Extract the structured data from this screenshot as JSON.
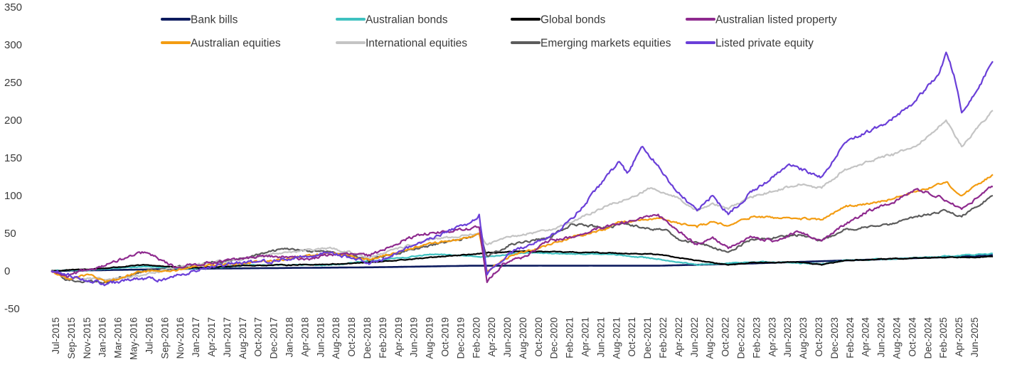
{
  "chart_data": {
    "type": "line",
    "title": "",
    "xlabel": "",
    "ylabel": "",
    "ylim": [
      -50,
      350
    ],
    "yticks": [
      "350",
      "300",
      "250",
      "200",
      "150",
      "100",
      "50",
      "0",
      "-50"
    ],
    "xticks": [
      "Jul-2015",
      "Sep-2015",
      "Nov-2015",
      "Jan-2016",
      "Mar-2016",
      "May-2016",
      "Jul-2016",
      "Sep-2016",
      "Nov-2016",
      "Jan-2017",
      "Apr-2017",
      "Jun-2017",
      "Aug-2017",
      "Oct-2017",
      "Dec-2017",
      "Jan-2018",
      "Apr-2018",
      "Jun-2018",
      "Aug-2018",
      "Oct-2018",
      "Dec-2018",
      "Feb-2019",
      "Apr-2019",
      "Jun-2019",
      "Aug-2019",
      "Oct-2019",
      "Dec-2019",
      "Feb-2020",
      "Apr-2020",
      "Jun-2020",
      "Aug-2020",
      "Oct-2020",
      "Dec-2020",
      "Feb-2021",
      "Apr-2021",
      "Jun-2021",
      "Aug-2021",
      "Oct-2021",
      "Dec-2021",
      "Feb-2022",
      "Apr-2022",
      "Jun-2022",
      "Aug-2022",
      "Oct-2022",
      "Dec-2022",
      "Feb-2023",
      "Apr-2023",
      "Jun-2023",
      "Aug-2023",
      "Oct-2023",
      "Dec-2023",
      "Feb-2024",
      "Apr-2024",
      "Jun-2024",
      "Aug-2024",
      "Oct-2024",
      "Dec-2024",
      "Feb-2025",
      "Apr-2025",
      "Jun-2025"
    ],
    "x_start": "Jul-2015",
    "x_end": "Aug-2025",
    "grid": false,
    "legend_position": "top",
    "series": [
      {
        "name": "Bank bills",
        "color": "#0d1b5e",
        "points": [
          [
            "Jul-2015",
            0
          ],
          [
            "Jan-2016",
            1
          ],
          [
            "Jan-2017",
            3
          ],
          [
            "Jan-2018",
            4
          ],
          [
            "Jan-2019",
            5
          ],
          [
            "Jan-2020",
            7
          ],
          [
            "Jan-2021",
            7
          ],
          [
            "Jan-2022",
            7
          ],
          [
            "Jan-2023",
            10
          ],
          [
            "Jan-2024",
            14
          ],
          [
            "Jan-2025",
            18
          ],
          [
            "Aug-2025",
            21
          ]
        ]
      },
      {
        "name": "Australian bonds",
        "color": "#3fc1c0",
        "points": [
          [
            "Jul-2015",
            0
          ],
          [
            "Jan-2016",
            2
          ],
          [
            "Jul-2016",
            6
          ],
          [
            "Jan-2017",
            3
          ],
          [
            "Jul-2017",
            7
          ],
          [
            "Jan-2018",
            8
          ],
          [
            "Jul-2018",
            8
          ],
          [
            "Jan-2019",
            14
          ],
          [
            "Aug-2019",
            22
          ],
          [
            "Jan-2020",
            20
          ],
          [
            "Mar-2020",
            19
          ],
          [
            "Aug-2020",
            24
          ],
          [
            "Jan-2021",
            23
          ],
          [
            "Jul-2021",
            22
          ],
          [
            "Jan-2022",
            16
          ],
          [
            "Jun-2022",
            8
          ],
          [
            "Oct-2022",
            10
          ],
          [
            "Jan-2023",
            12
          ],
          [
            "Jul-2023",
            11
          ],
          [
            "Oct-2023",
            9
          ],
          [
            "Jan-2024",
            14
          ],
          [
            "Jul-2024",
            16
          ],
          [
            "Jan-2025",
            19
          ],
          [
            "Aug-2025",
            23
          ]
        ]
      },
      {
        "name": "Global bonds",
        "color": "#000000",
        "points": [
          [
            "Jul-2015",
            0
          ],
          [
            "Jan-2016",
            3
          ],
          [
            "Jul-2016",
            8
          ],
          [
            "Jan-2017",
            4
          ],
          [
            "Jul-2017",
            7
          ],
          [
            "Jan-2018",
            8
          ],
          [
            "Jul-2018",
            9
          ],
          [
            "Jan-2019",
            12
          ],
          [
            "Aug-2019",
            18
          ],
          [
            "Jan-2020",
            22
          ],
          [
            "Mar-2020",
            24
          ],
          [
            "Aug-2020",
            26
          ],
          [
            "Jan-2021",
            25
          ],
          [
            "Jul-2021",
            24
          ],
          [
            "Jan-2022",
            22
          ],
          [
            "Jun-2022",
            14
          ],
          [
            "Oct-2022",
            8
          ],
          [
            "Jan-2023",
            11
          ],
          [
            "Jul-2023",
            12
          ],
          [
            "Oct-2023",
            8
          ],
          [
            "Jan-2024",
            14
          ],
          [
            "Jul-2024",
            16
          ],
          [
            "Jan-2025",
            18
          ],
          [
            "Aug-2025",
            19
          ]
        ]
      },
      {
        "name": "Australian listed property",
        "color": "#8e2a8e",
        "points": [
          [
            "Jul-2015",
            0
          ],
          [
            "Sep-2015",
            -8
          ],
          [
            "Nov-2015",
            0
          ],
          [
            "Jan-2016",
            5
          ],
          [
            "Apr-2016",
            15
          ],
          [
            "Jul-2016",
            25
          ],
          [
            "Sep-2016",
            15
          ],
          [
            "Nov-2016",
            5
          ],
          [
            "Jan-2017",
            8
          ],
          [
            "Apr-2017",
            12
          ],
          [
            "Jul-2017",
            15
          ],
          [
            "Oct-2017",
            20
          ],
          [
            "Jan-2018",
            18
          ],
          [
            "Apr-2018",
            16
          ],
          [
            "Jul-2018",
            22
          ],
          [
            "Oct-2018",
            22
          ],
          [
            "Dec-2018",
            20
          ],
          [
            "Feb-2019",
            30
          ],
          [
            "Apr-2019",
            40
          ],
          [
            "Jul-2019",
            50
          ],
          [
            "Oct-2019",
            52
          ],
          [
            "Feb-2020",
            58
          ],
          [
            "Mar-2020",
            -15
          ],
          [
            "May-2020",
            10
          ],
          [
            "Aug-2020",
            20
          ],
          [
            "Nov-2020",
            40
          ],
          [
            "Feb-2021",
            45
          ],
          [
            "May-2021",
            55
          ],
          [
            "Aug-2021",
            62
          ],
          [
            "Nov-2021",
            70
          ],
          [
            "Jan-2022",
            75
          ],
          [
            "Mar-2022",
            58
          ],
          [
            "Jun-2022",
            35
          ],
          [
            "Aug-2022",
            45
          ],
          [
            "Oct-2022",
            30
          ],
          [
            "Jan-2023",
            45
          ],
          [
            "Apr-2023",
            40
          ],
          [
            "Jul-2023",
            52
          ],
          [
            "Oct-2023",
            40
          ],
          [
            "Jan-2024",
            62
          ],
          [
            "Apr-2024",
            80
          ],
          [
            "Jul-2024",
            90
          ],
          [
            "Oct-2024",
            108
          ],
          [
            "Jan-2025",
            100
          ],
          [
            "Apr-2025",
            82
          ],
          [
            "Aug-2025",
            112
          ]
        ]
      },
      {
        "name": "Australian equities",
        "color": "#f39c12",
        "points": [
          [
            "Jul-2015",
            0
          ],
          [
            "Sep-2015",
            -10
          ],
          [
            "Dec-2015",
            -5
          ],
          [
            "Feb-2016",
            -15
          ],
          [
            "Jul-2016",
            0
          ],
          [
            "Nov-2016",
            0
          ],
          [
            "Jan-2017",
            5
          ],
          [
            "Jul-2017",
            10
          ],
          [
            "Jan-2018",
            15
          ],
          [
            "Jul-2018",
            25
          ],
          [
            "Dec-2018",
            15
          ],
          [
            "Jul-2019",
            35
          ],
          [
            "Jan-2020",
            45
          ],
          [
            "Feb-2020",
            50
          ],
          [
            "Mar-2020",
            0
          ],
          [
            "Jun-2020",
            20
          ],
          [
            "Nov-2020",
            35
          ],
          [
            "Feb-2021",
            45
          ],
          [
            "Jun-2021",
            55
          ],
          [
            "Aug-2021",
            65
          ],
          [
            "Nov-2021",
            68
          ],
          [
            "Jan-2022",
            70
          ],
          [
            "Jun-2022",
            58
          ],
          [
            "Aug-2022",
            65
          ],
          [
            "Oct-2022",
            60
          ],
          [
            "Jan-2023",
            72
          ],
          [
            "Jun-2023",
            70
          ],
          [
            "Oct-2023",
            68
          ],
          [
            "Jan-2024",
            85
          ],
          [
            "Jul-2024",
            95
          ],
          [
            "Oct-2024",
            105
          ],
          [
            "Feb-2025",
            118
          ],
          [
            "Apr-2025",
            100
          ],
          [
            "Aug-2025",
            128
          ]
        ]
      },
      {
        "name": "International equities",
        "color": "#c4c4c4",
        "points": [
          [
            "Jul-2015",
            0
          ],
          [
            "Sep-2015",
            -8
          ],
          [
            "Feb-2016",
            -12
          ],
          [
            "Jul-2016",
            -5
          ],
          [
            "Nov-2016",
            5
          ],
          [
            "Jul-2017",
            15
          ],
          [
            "Jan-2018",
            25
          ],
          [
            "Jul-2018",
            30
          ],
          [
            "Dec-2018",
            18
          ],
          [
            "Jul-2019",
            40
          ],
          [
            "Feb-2020",
            50
          ],
          [
            "Mar-2020",
            35
          ],
          [
            "Jun-2020",
            45
          ],
          [
            "Nov-2020",
            55
          ],
          [
            "Feb-2021",
            65
          ],
          [
            "Jun-2021",
            85
          ],
          [
            "Sep-2021",
            95
          ],
          [
            "Dec-2021",
            110
          ],
          [
            "Mar-2022",
            100
          ],
          [
            "Jun-2022",
            80
          ],
          [
            "Aug-2022",
            90
          ],
          [
            "Oct-2022",
            82
          ],
          [
            "Jan-2023",
            98
          ],
          [
            "Jul-2023",
            115
          ],
          [
            "Oct-2023",
            110
          ],
          [
            "Jan-2024",
            135
          ],
          [
            "Jul-2024",
            155
          ],
          [
            "Oct-2024",
            165
          ],
          [
            "Feb-2025",
            200
          ],
          [
            "Apr-2025",
            165
          ],
          [
            "Aug-2025",
            213
          ]
        ]
      },
      {
        "name": "Emerging markets equities",
        "color": "#5c5c5c",
        "points": [
          [
            "Jul-2015",
            0
          ],
          [
            "Sep-2015",
            -12
          ],
          [
            "Feb-2016",
            -15
          ],
          [
            "Jul-2016",
            0
          ],
          [
            "Nov-2016",
            5
          ],
          [
            "Jul-2017",
            15
          ],
          [
            "Jan-2018",
            30
          ],
          [
            "Jul-2018",
            25
          ],
          [
            "Dec-2018",
            15
          ],
          [
            "Jul-2019",
            32
          ],
          [
            "Jan-2020",
            45
          ],
          [
            "Feb-2020",
            50
          ],
          [
            "Mar-2020",
            20
          ],
          [
            "Jun-2020",
            35
          ],
          [
            "Nov-2020",
            45
          ],
          [
            "Feb-2021",
            62
          ],
          [
            "Jun-2021",
            58
          ],
          [
            "Sep-2021",
            62
          ],
          [
            "Dec-2021",
            55
          ],
          [
            "Feb-2022",
            55
          ],
          [
            "Apr-2022",
            40
          ],
          [
            "Jun-2022",
            38
          ],
          [
            "Oct-2022",
            25
          ],
          [
            "Jan-2023",
            42
          ],
          [
            "Jul-2023",
            48
          ],
          [
            "Oct-2023",
            40
          ],
          [
            "Jan-2024",
            55
          ],
          [
            "Jul-2024",
            62
          ],
          [
            "Oct-2024",
            72
          ],
          [
            "Feb-2025",
            80
          ],
          [
            "Apr-2025",
            72
          ],
          [
            "Aug-2025",
            100
          ]
        ]
      },
      {
        "name": "Listed private equity",
        "color": "#6a3fd8",
        "points": [
          [
            "Jul-2015",
            0
          ],
          [
            "Sep-2015",
            -5
          ],
          [
            "Feb-2016",
            -18
          ],
          [
            "May-2016",
            -12
          ],
          [
            "Jul-2016",
            -10
          ],
          [
            "Sep-2016",
            -12
          ],
          [
            "Jan-2017",
            0
          ],
          [
            "Jul-2017",
            10
          ],
          [
            "Jan-2018",
            15
          ],
          [
            "Jul-2018",
            25
          ],
          [
            "Dec-2018",
            10
          ],
          [
            "Jul-2019",
            40
          ],
          [
            "Jan-2020",
            65
          ],
          [
            "Feb-2020",
            75
          ],
          [
            "Mar-2020",
            -5
          ],
          [
            "Jun-2020",
            25
          ],
          [
            "Nov-2020",
            45
          ],
          [
            "Feb-2021",
            70
          ],
          [
            "Jun-2021",
            120
          ],
          [
            "Aug-2021",
            145
          ],
          [
            "Sep-2021",
            130
          ],
          [
            "Nov-2021",
            165
          ],
          [
            "Jan-2022",
            140
          ],
          [
            "Mar-2022",
            110
          ],
          [
            "Jun-2022",
            80
          ],
          [
            "Aug-2022",
            100
          ],
          [
            "Oct-2022",
            75
          ],
          [
            "Jan-2023",
            105
          ],
          [
            "Jun-2023",
            140
          ],
          [
            "Oct-2023",
            125
          ],
          [
            "Jan-2024",
            170
          ],
          [
            "Jul-2024",
            200
          ],
          [
            "Oct-2024",
            225
          ],
          [
            "Jan-2025",
            260
          ],
          [
            "Feb-2025",
            290
          ],
          [
            "Mar-2025",
            260
          ],
          [
            "Apr-2025",
            210
          ],
          [
            "Jun-2025",
            240
          ],
          [
            "Aug-2025",
            278
          ]
        ]
      }
    ]
  }
}
